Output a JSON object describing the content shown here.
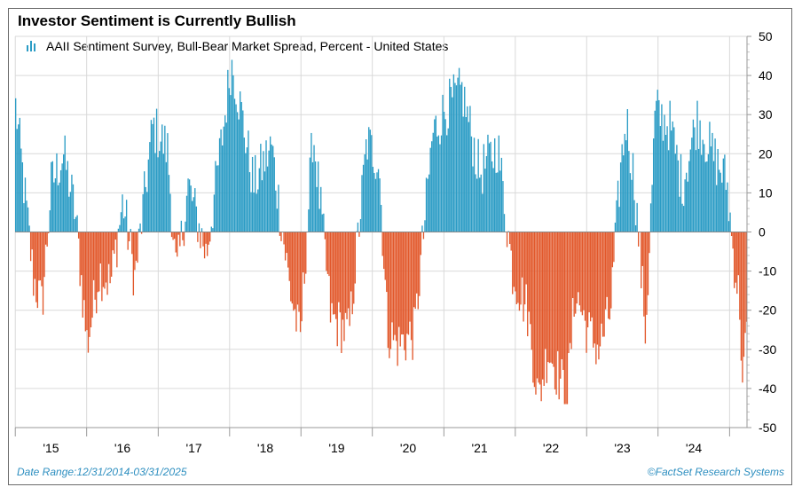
{
  "title": "Investor Sentiment is Currently Bullish",
  "legend": {
    "label": "AAII Sentiment Survey, Bull-Bear Market Spread, Percent - United States",
    "icon": "bar-chart-icon"
  },
  "footer": {
    "date_range": "Date Range:12/31/2014-03/31/2025",
    "source": "©FactSet Research Systems"
  },
  "colors": {
    "positive": "#2b9cc5",
    "negative": "#e2582b",
    "grid": "#d9d9d9",
    "footer": "#2e8fc0"
  },
  "chart_data": {
    "type": "bar",
    "title": "Investor Sentiment is Currently Bullish",
    "series_name": "AAII Sentiment Survey, Bull-Bear Market Spread, Percent - United States",
    "xlabel": "",
    "ylabel": "",
    "ylim": [
      -50,
      50
    ],
    "y_ticks": [
      50,
      40,
      30,
      20,
      10,
      0,
      -10,
      -20,
      -30,
      -40,
      -50
    ],
    "x_ticks": [
      "'15",
      "'16",
      "'17",
      "'18",
      "'19",
      "'20",
      "'21",
      "'22",
      "'23",
      "'24"
    ],
    "x_range": [
      "2014-12-31",
      "2025-03-31"
    ],
    "frequency": "weekly",
    "grid": true,
    "anchor_points": [
      {
        "date": "2015-01-01",
        "value": 32
      },
      {
        "date": "2015-02-15",
        "value": 10
      },
      {
        "date": "2015-04-01",
        "value": -12
      },
      {
        "date": "2015-05-15",
        "value": -19
      },
      {
        "date": "2015-07-01",
        "value": 12
      },
      {
        "date": "2015-09-01",
        "value": 20
      },
      {
        "date": "2015-11-01",
        "value": 5
      },
      {
        "date": "2016-01-01",
        "value": -29
      },
      {
        "date": "2016-03-01",
        "value": -10
      },
      {
        "date": "2016-05-01",
        "value": -13
      },
      {
        "date": "2016-07-01",
        "value": 8
      },
      {
        "date": "2016-09-01",
        "value": -12
      },
      {
        "date": "2016-12-01",
        "value": 27
      },
      {
        "date": "2017-02-15",
        "value": 21
      },
      {
        "date": "2017-04-01",
        "value": -12
      },
      {
        "date": "2017-06-01",
        "value": 12
      },
      {
        "date": "2017-09-01",
        "value": -6
      },
      {
        "date": "2017-12-01",
        "value": 28
      },
      {
        "date": "2018-01-08",
        "value": 44
      },
      {
        "date": "2018-03-01",
        "value": 30
      },
      {
        "date": "2018-05-01",
        "value": 12
      },
      {
        "date": "2018-08-01",
        "value": 22
      },
      {
        "date": "2018-11-01",
        "value": -14
      },
      {
        "date": "2018-12-25",
        "value": -28
      },
      {
        "date": "2019-03-01",
        "value": 26
      },
      {
        "date": "2019-06-01",
        "value": -22
      },
      {
        "date": "2019-09-01",
        "value": -26
      },
      {
        "date": "2019-12-01",
        "value": 23
      },
      {
        "date": "2020-02-01",
        "value": 18
      },
      {
        "date": "2020-03-15",
        "value": -25
      },
      {
        "date": "2020-05-01",
        "value": -29
      },
      {
        "date": "2020-08-01",
        "value": -26
      },
      {
        "date": "2020-11-01",
        "value": 25
      },
      {
        "date": "2021-01-01",
        "value": 31
      },
      {
        "date": "2021-04-01",
        "value": 36
      },
      {
        "date": "2021-07-01",
        "value": 15
      },
      {
        "date": "2021-10-01",
        "value": 22
      },
      {
        "date": "2021-12-15",
        "value": -10
      },
      {
        "date": "2022-03-01",
        "value": -20
      },
      {
        "date": "2022-04-27",
        "value": -43
      },
      {
        "date": "2022-06-15",
        "value": -30
      },
      {
        "date": "2022-09-20",
        "value": -42
      },
      {
        "date": "2022-11-01",
        "value": -15
      },
      {
        "date": "2023-01-01",
        "value": -25
      },
      {
        "date": "2023-03-01",
        "value": -30
      },
      {
        "date": "2023-05-01",
        "value": -20
      },
      {
        "date": "2023-06-20",
        "value": 16
      },
      {
        "date": "2023-07-20",
        "value": 29
      },
      {
        "date": "2023-09-01",
        "value": 12
      },
      {
        "date": "2023-10-27",
        "value": -26
      },
      {
        "date": "2023-12-15",
        "value": 31
      },
      {
        "date": "2024-03-01",
        "value": 27
      },
      {
        "date": "2024-05-01",
        "value": 12
      },
      {
        "date": "2024-07-15",
        "value": 29
      },
      {
        "date": "2024-10-01",
        "value": 20
      },
      {
        "date": "2024-12-15",
        "value": 13
      },
      {
        "date": "2025-01-15",
        "value": -5
      },
      {
        "date": "2025-02-20",
        "value": -19
      },
      {
        "date": "2025-03-06",
        "value": -41
      },
      {
        "date": "2025-03-27",
        "value": -24
      }
    ]
  }
}
